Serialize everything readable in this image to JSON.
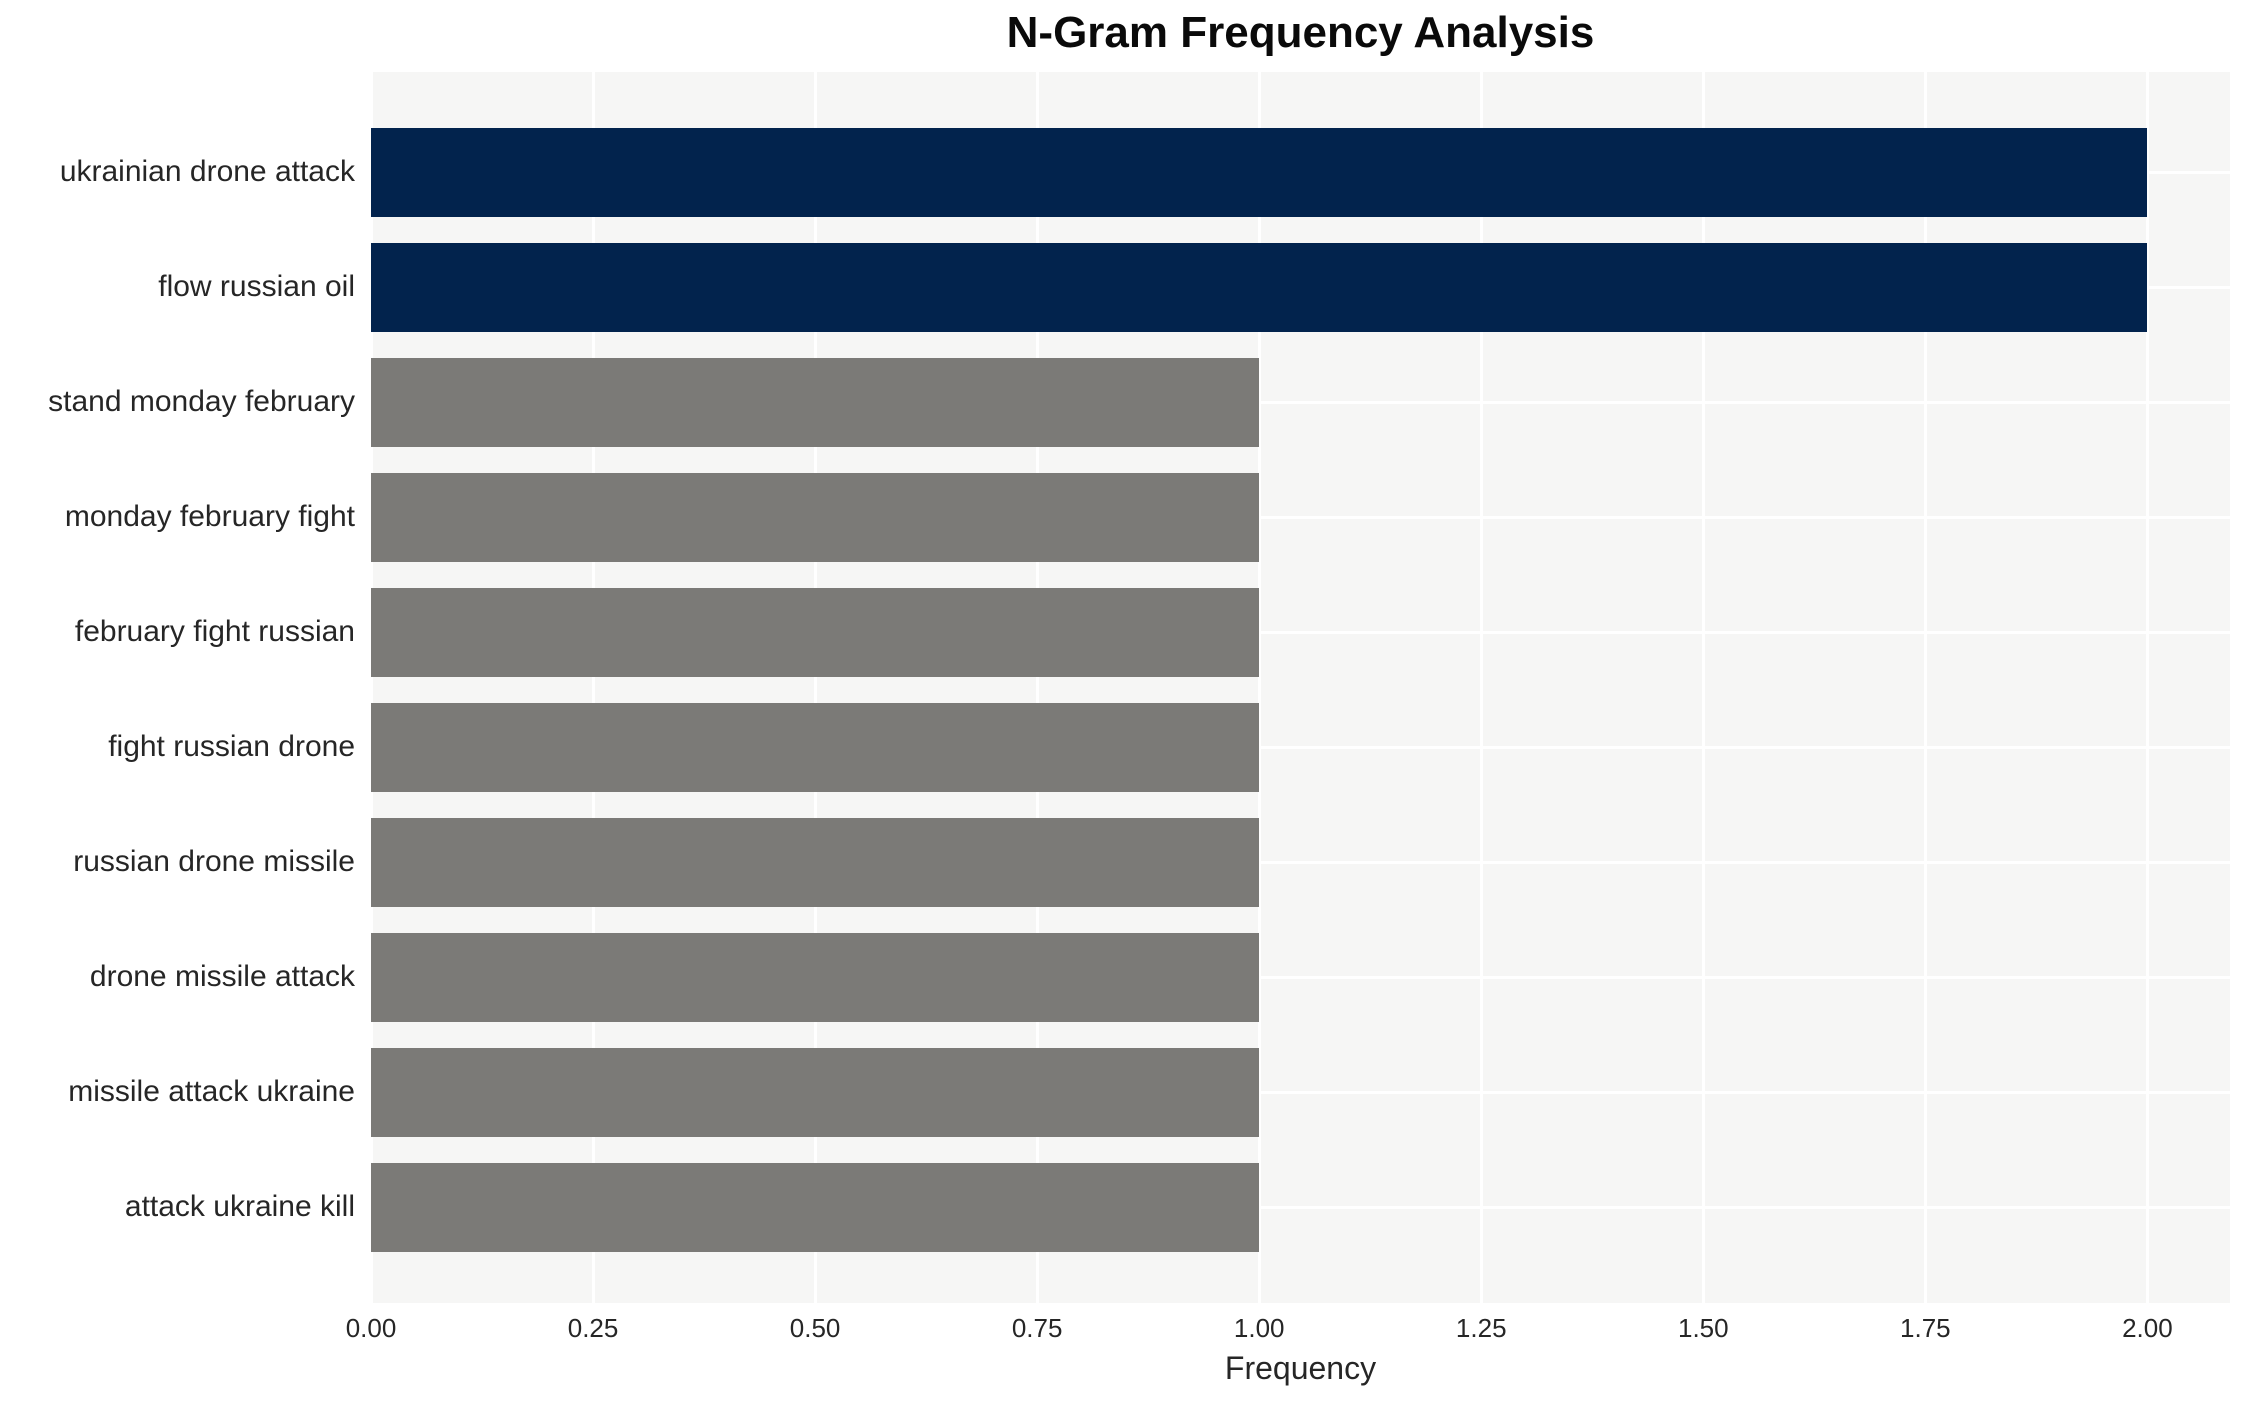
{
  "chart_data": {
    "type": "bar",
    "orientation": "horizontal",
    "title": "N-Gram Frequency Analysis",
    "xlabel": "Frequency",
    "ylabel": "",
    "categories": [
      "ukrainian drone attack",
      "flow russian oil",
      "stand monday february",
      "monday february fight",
      "february fight russian",
      "fight russian drone",
      "russian drone missile",
      "drone missile attack",
      "missile attack ukraine",
      "attack ukraine kill"
    ],
    "values": [
      2,
      2,
      1,
      1,
      1,
      1,
      1,
      1,
      1,
      1
    ],
    "bar_colors": [
      "#02234d",
      "#02234d",
      "#7b7a77",
      "#7b7a77",
      "#7b7a77",
      "#7b7a77",
      "#7b7a77",
      "#7b7a77",
      "#7b7a77",
      "#7b7a77"
    ],
    "xlim": [
      0,
      2.093
    ],
    "xticks": [
      {
        "value": 0.0,
        "label": "0.00"
      },
      {
        "value": 0.25,
        "label": "0.25"
      },
      {
        "value": 0.5,
        "label": "0.50"
      },
      {
        "value": 0.75,
        "label": "0.75"
      },
      {
        "value": 1.0,
        "label": "1.00"
      },
      {
        "value": 1.25,
        "label": "1.25"
      },
      {
        "value": 1.5,
        "label": "1.50"
      },
      {
        "value": 1.75,
        "label": "1.75"
      },
      {
        "value": 2.0,
        "label": "2.00"
      }
    ],
    "grid": true,
    "grid_color": "#ffffff",
    "plot_background": "#f6f6f5",
    "highlight_color": "#02234d",
    "normal_color": "#7b7a77",
    "legend": null
  }
}
